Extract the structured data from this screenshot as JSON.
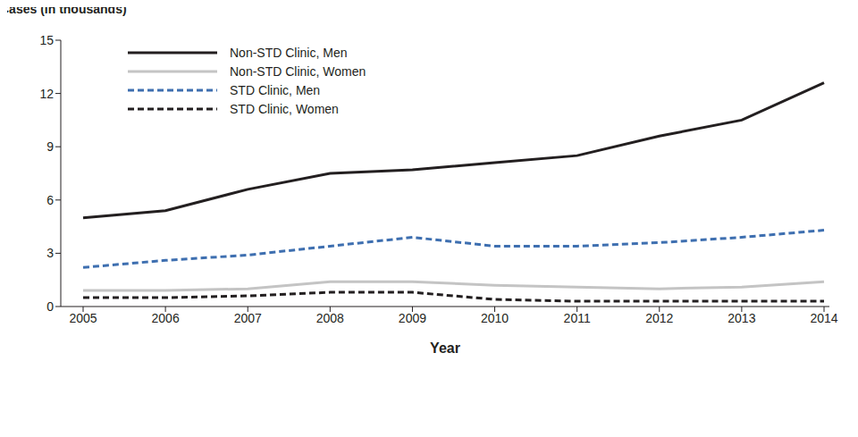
{
  "chart_data": {
    "type": "line",
    "y_label": "Cases (in thousands)",
    "x_label": "Year",
    "categories": [
      "2005",
      "2006",
      "2007",
      "2008",
      "2009",
      "2010",
      "2011",
      "2012",
      "2013",
      "2014"
    ],
    "series": [
      {
        "name": "Non-STD Clinic, Men",
        "color": "#231f20",
        "line_style": "solid",
        "values": [
          5.0,
          5.4,
          6.6,
          7.5,
          7.7,
          8.1,
          8.5,
          9.6,
          10.5,
          12.6
        ]
      },
      {
        "name": "Non-STD Clinic, Women",
        "color": "#c4c4c4",
        "line_style": "solid",
        "values": [
          0.9,
          0.9,
          1.0,
          1.4,
          1.4,
          1.2,
          1.1,
          1.0,
          1.1,
          1.4
        ]
      },
      {
        "name": "STD Clinic, Men",
        "color": "#3e6fb0",
        "line_style": "dashed",
        "values": [
          2.2,
          2.6,
          2.9,
          3.4,
          3.9,
          3.4,
          3.4,
          3.6,
          3.9,
          4.3
        ]
      },
      {
        "name": "STD Clinic, Women",
        "color": "#231f20",
        "line_style": "dashed",
        "values": [
          0.5,
          0.5,
          0.6,
          0.8,
          0.8,
          0.4,
          0.3,
          0.3,
          0.3,
          0.3
        ]
      }
    ],
    "ylim": [
      0,
      15
    ],
    "yticks": [
      0,
      3,
      6,
      9,
      12,
      15
    ],
    "grid": false,
    "legend": "upper left"
  }
}
